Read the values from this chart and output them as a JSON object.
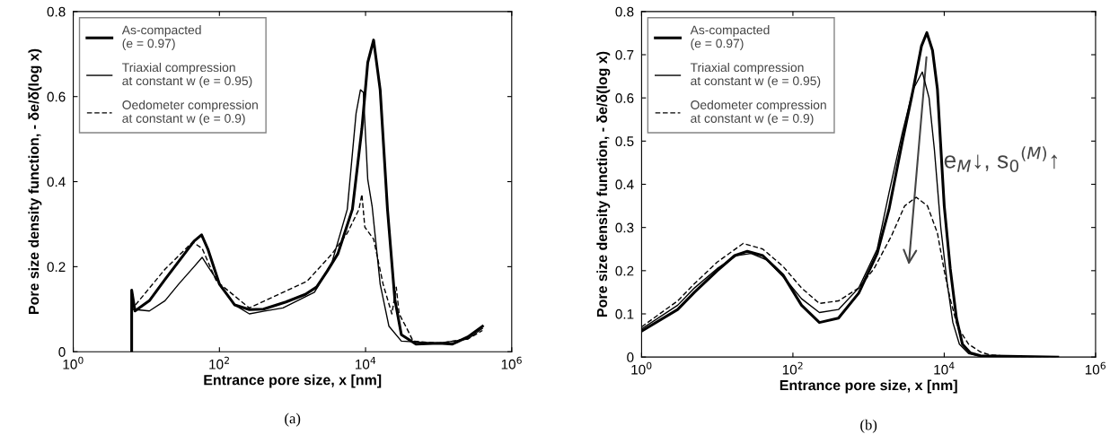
{
  "chart_data": [
    {
      "type": "line",
      "log": "x",
      "xlabel": "Entrance pore size, x [nm]",
      "ylabel": "Pore size density function, - δe/δ(log x)",
      "xlim": [
        1,
        1000000
      ],
      "ylim": [
        0,
        0.8
      ],
      "xticks": [
        {
          "value": 1,
          "label": "10$^{0}$"
        },
        {
          "value": 100,
          "label": "10$^{2}$"
        },
        {
          "value": 10000,
          "label": "10$^{4}$"
        },
        {
          "value": 1000000,
          "label": "10$^{6}$"
        }
      ],
      "yticks": [
        0,
        0.2,
        0.4,
        0.6,
        0.8
      ],
      "grid": false,
      "legend": "top left",
      "annotations": [
        "(a)"
      ],
      "series": [
        {
          "name": "As-compacted\n(e = 0.97)",
          "color": "#000000",
          "line_style": "solid",
          "x": [
            6.3,
            6.3,
            7,
            11,
            18,
            30,
            45,
            57,
            70,
            100,
            162,
            257,
            400,
            813,
            1500,
            2138,
            3000,
            4169,
            6607,
            8913,
            10715,
            12882,
            15849,
            19953,
            25119,
            30903,
            48978,
            100000,
            154882,
            251189,
            398107
          ],
          "values": [
            0,
            0.145,
            0.096,
            0.12,
            0.17,
            0.22,
            0.26,
            0.275,
            0.24,
            0.159,
            0.11,
            0.099,
            0.1,
            0.117,
            0.135,
            0.152,
            0.19,
            0.23,
            0.335,
            0.525,
            0.68,
            0.733,
            0.616,
            0.335,
            0.124,
            0.04,
            0.018,
            0.02,
            0.018,
            0.035,
            0.06
          ]
        },
        {
          "name": "Triaxial compression\nat constant w (e = 0.95)",
          "color": "#000000",
          "line_style": "solid",
          "x": [
            6.3,
            11,
            18,
            28,
            45,
            58,
            70,
            100,
            162,
            257,
            400,
            741,
            2000,
            3467,
            5623,
            7413,
            8511,
            9333,
            10715,
            12303,
            15849,
            20893,
            30903,
            100000,
            251189,
            398107
          ],
          "values": [
            0.1,
            0.096,
            0.12,
            0.16,
            0.2,
            0.222,
            0.2,
            0.16,
            0.11,
            0.089,
            0.095,
            0.103,
            0.14,
            0.21,
            0.335,
            0.56,
            0.616,
            0.61,
            0.405,
            0.342,
            0.159,
            0.06,
            0.025,
            0.02,
            0.03,
            0.055
          ]
        },
        {
          "name": "Oedometer compression\nat constant w (e = 0.9)",
          "color": "#000000",
          "line_style": "dashed",
          "x": [
            7.1,
            18,
            43,
            58,
            91,
            257,
            1585,
            3467,
            5623,
            8128,
            8913,
            9772,
            12882,
            17378,
            22909,
            26303,
            28840,
            37154,
            44668,
            100000,
            251189,
            398107
          ],
          "values": [
            0.11,
            0.194,
            0.258,
            0.243,
            0.166,
            0.103,
            0.166,
            0.23,
            0.279,
            0.335,
            0.37,
            0.293,
            0.265,
            0.159,
            0.089,
            0.152,
            0.089,
            0.053,
            0.025,
            0.02,
            0.03,
            0.05
          ]
        }
      ]
    },
    {
      "type": "line",
      "log": "x",
      "xlabel": "Entrance pore size, x [nm]",
      "ylabel": "Pore size density function, - δe/δ(log x)",
      "xlim": [
        1,
        1000000
      ],
      "ylim": [
        0,
        0.8
      ],
      "xticks": [
        {
          "value": 1,
          "label": "10$^{0}$"
        },
        {
          "value": 100,
          "label": "10$^{2}$"
        },
        {
          "value": 10000,
          "label": "10$^{4}$"
        },
        {
          "value": 1000000,
          "label": "10$^{6}$"
        }
      ],
      "yticks": [
        0,
        0.1,
        0.2,
        0.3,
        0.4,
        0.5,
        0.6,
        0.7,
        0.8
      ],
      "grid": false,
      "legend": "top left",
      "annotations": [
        "e$_{M}$↓, s$_{0}$$^{(M)}$↑",
        "(b)"
      ],
      "series": [
        {
          "name": "As-compacted\n(e = 0.97)",
          "color": "#000000",
          "line_style": "solid",
          "x": [
            1,
            3,
            5,
            10,
            17,
            25,
            40,
            74,
            130,
            224,
            400,
            741,
            1300,
            1862,
            2800,
            3890,
            5000,
            5888,
            7000,
            8128,
            10000,
            12023,
            14500,
            17378,
            22000,
            30200,
            316228
          ],
          "values": [
            0.06,
            0.11,
            0.15,
            0.2,
            0.235,
            0.245,
            0.235,
            0.19,
            0.12,
            0.08,
            0.09,
            0.148,
            0.24,
            0.342,
            0.5,
            0.62,
            0.72,
            0.751,
            0.71,
            0.62,
            0.35,
            0.204,
            0.09,
            0.03,
            0.01,
            0.003,
            0
          ]
        },
        {
          "name": "Triaxial compression\nat constant w (e = 0.95)",
          "color": "#000000",
          "line_style": "solid",
          "x": [
            1,
            3,
            5,
            10,
            18,
            28,
            45,
            80,
            130,
            224,
            400,
            741,
            1300,
            1862,
            2800,
            3890,
            5129,
            6300,
            7413,
            9000,
            10965,
            13000,
            15849,
            21000,
            30000,
            316228
          ],
          "values": [
            0.065,
            0.12,
            0.16,
            0.205,
            0.235,
            0.24,
            0.225,
            0.18,
            0.135,
            0.103,
            0.11,
            0.16,
            0.25,
            0.38,
            0.52,
            0.62,
            0.66,
            0.6,
            0.48,
            0.3,
            0.17,
            0.08,
            0.03,
            0.008,
            0.002,
            0
          ]
        },
        {
          "name": "Oedometer compression\nat constant w (e = 0.9)",
          "color": "#000000",
          "line_style": "dashed",
          "x": [
            1,
            3,
            5,
            10,
            22,
            40,
            74,
            130,
            224,
            400,
            741,
            1175,
            2000,
            3000,
            4266,
            6000,
            8128,
            10000,
            12023,
            15000,
            20893,
            30000,
            39811,
            100000,
            316228
          ],
          "values": [
            0.07,
            0.13,
            0.17,
            0.22,
            0.263,
            0.25,
            0.21,
            0.16,
            0.124,
            0.13,
            0.16,
            0.204,
            0.28,
            0.35,
            0.37,
            0.35,
            0.287,
            0.2,
            0.134,
            0.07,
            0.03,
            0.012,
            0.005,
            0,
            0
          ]
        }
      ]
    }
  ]
}
